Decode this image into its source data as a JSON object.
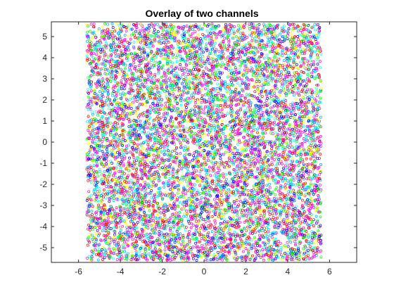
{
  "chart_data": {
    "type": "scatter",
    "title": "Overlay of two channels",
    "xlabel": "",
    "ylabel": "",
    "xlim": [
      -7.3,
      7.3
    ],
    "ylim": [
      -5.7,
      5.7
    ],
    "xticks": [
      -6,
      -4,
      -2,
      0,
      2,
      4,
      6
    ],
    "yticks": [
      -5,
      -4,
      -3,
      -2,
      -1,
      0,
      1,
      2,
      3,
      4,
      5
    ],
    "xtick_labels": [
      "-6",
      "-4",
      "-2",
      "0",
      "2",
      "4",
      "6"
    ],
    "ytick_labels": [
      "-5",
      "-4",
      "-3",
      "-2",
      "-1",
      "0",
      "1",
      "2",
      "3",
      "4",
      "5"
    ],
    "grid": false,
    "legend": "none",
    "marker": "open-circle",
    "point_cloud": {
      "x_range": [
        -5.6,
        5.6
      ],
      "y_range": [
        -5.6,
        5.6
      ],
      "approx_point_count": 9000
    },
    "colors": [
      "#ff00ff",
      "#00ffff",
      "#00ff00",
      "#0000ff",
      "#ff0000",
      "#ffff00",
      "#ff00aa",
      "#00aaff"
    ]
  },
  "axes_color": "#262626"
}
